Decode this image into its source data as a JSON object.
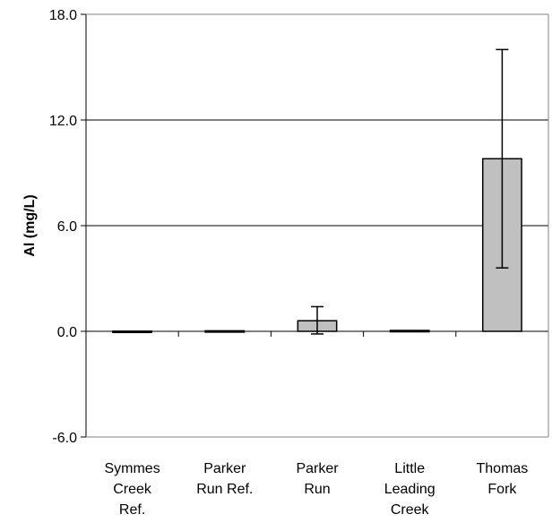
{
  "chart_data": {
    "type": "bar",
    "title": "",
    "xlabel": "",
    "ylabel": "Al (mg/L)",
    "ylim": [
      -6.0,
      18.0
    ],
    "yticks": [
      "18.0",
      "12.0",
      "6.0",
      "0.0",
      "-6.0"
    ],
    "ytick_values": [
      18,
      12,
      6,
      0,
      -6
    ],
    "gridlines": [
      12,
      6,
      0
    ],
    "grid": true,
    "categories": [
      [
        "Symmes",
        "Creek",
        "Ref."
      ],
      [
        "Parker",
        "Run Ref."
      ],
      [
        "Parker",
        "Run"
      ],
      [
        "Little",
        "Leading",
        "Creek"
      ],
      [
        "Thomas",
        "Fork"
      ]
    ],
    "values": [
      0.01,
      0.03,
      0.6,
      0.05,
      9.8
    ],
    "error_low": [
      0.01,
      0.03,
      -0.15,
      0.05,
      3.6
    ],
    "error_high": [
      0.01,
      0.03,
      1.4,
      0.05,
      16.0
    ],
    "bar_color": "#c0c0c0",
    "legend": "none"
  }
}
